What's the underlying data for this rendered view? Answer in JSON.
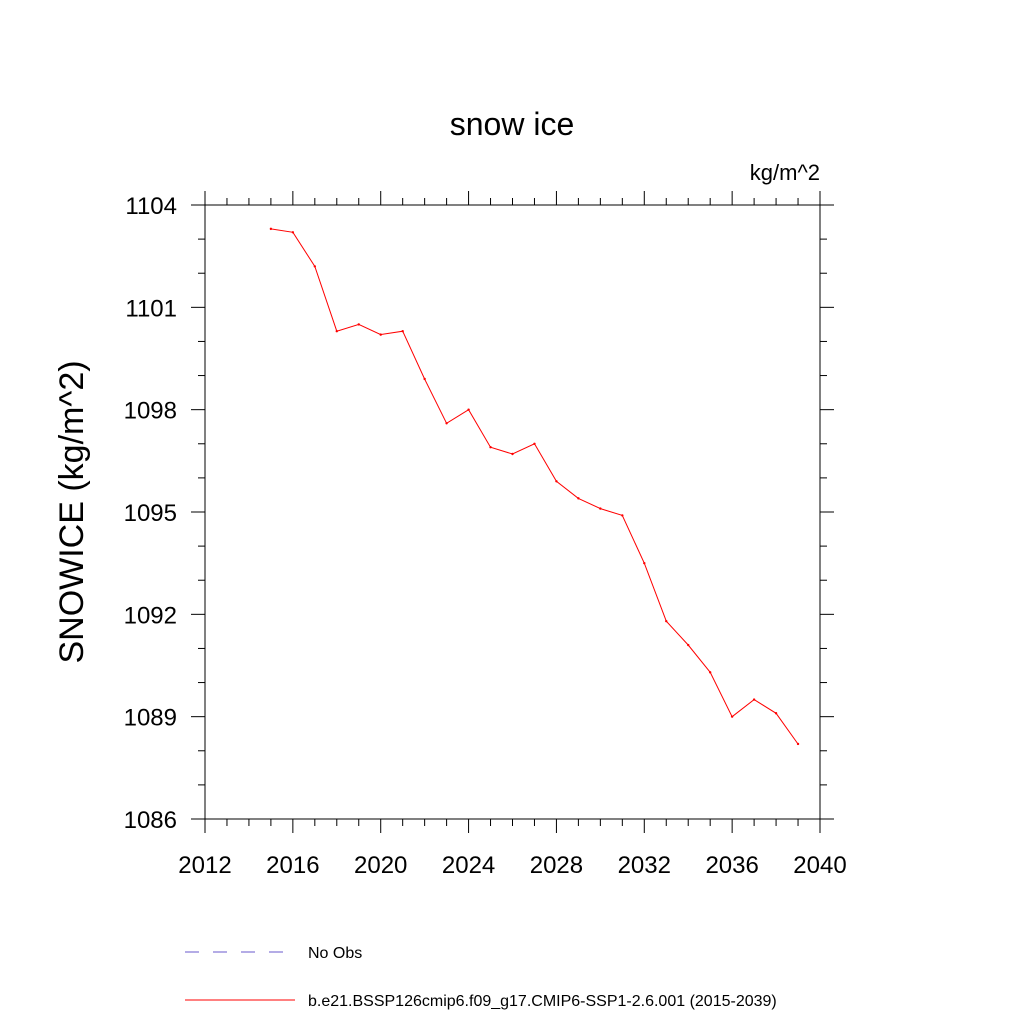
{
  "chart_data": {
    "type": "line",
    "title": "snow ice",
    "units_label": "kg/m^2",
    "ylabel": "SNOWICE  (kg/m^2)",
    "xlabel": "",
    "xlim": [
      2012,
      2040
    ],
    "ylim": [
      1086,
      1104
    ],
    "x_ticks": [
      2012,
      2016,
      2020,
      2024,
      2028,
      2032,
      2036,
      2040
    ],
    "y_ticks": [
      1086,
      1089,
      1092,
      1095,
      1098,
      1101,
      1104
    ],
    "grid": false,
    "legend_position": "bottom",
    "series": [
      {
        "name": "No Obs",
        "color": "#6a5acd",
        "dash": "dashed",
        "x": [],
        "y": []
      },
      {
        "name": "b.e21.BSSP126cmip6.f09_g17.CMIP6-SSP1-2.6.001 (2015-2039)",
        "color": "#ff0000",
        "dash": "solid",
        "x": [
          2015,
          2016,
          2017,
          2018,
          2019,
          2020,
          2021,
          2022,
          2023,
          2024,
          2025,
          2026,
          2027,
          2028,
          2029,
          2030,
          2031,
          2032,
          2033,
          2034,
          2035,
          2036,
          2037,
          2038,
          2039
        ],
        "y": [
          1103.3,
          1103.2,
          1102.2,
          1100.3,
          1100.5,
          1100.2,
          1100.3,
          1098.9,
          1097.6,
          1098.0,
          1096.9,
          1096.7,
          1097.0,
          1095.9,
          1095.4,
          1095.1,
          1094.9,
          1093.5,
          1091.8,
          1091.1,
          1090.3,
          1089.0,
          1089.5,
          1089.1,
          1088.2
        ]
      }
    ]
  }
}
